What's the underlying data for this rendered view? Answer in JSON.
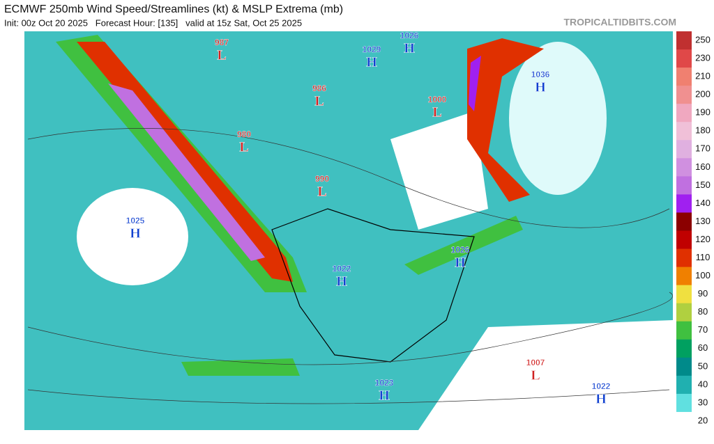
{
  "header": {
    "title": "ECMWF 250mb Wind Speed/Streamlines (kt) & MSLP Extrema (mb)",
    "subtitle": "Init: 00z Oct 20 2025   Forecast Hour: [135]   valid at 15z Sat, Oct 25 2025",
    "site": "TROPICALTIDBITS.COM"
  },
  "pressure_centers": [
    {
      "value": 987,
      "kind": "L"
    },
    {
      "value": 986,
      "kind": "L"
    },
    {
      "value": 980,
      "kind": "L"
    },
    {
      "value": 990,
      "kind": "L"
    },
    {
      "value": 1000,
      "kind": "L"
    },
    {
      "value": 1007,
      "kind": "L"
    },
    {
      "value": 1025,
      "kind": "H"
    },
    {
      "value": 1029,
      "kind": "H"
    },
    {
      "value": 1026,
      "kind": "H"
    },
    {
      "value": 1036,
      "kind": "H"
    },
    {
      "value": 1022,
      "kind": "H"
    },
    {
      "value": 1026,
      "kind": "H"
    },
    {
      "value": 1023,
      "kind": "H"
    },
    {
      "value": 1022,
      "kind": "H"
    }
  ],
  "colorbar": {
    "labels": [
      250,
      230,
      210,
      200,
      190,
      180,
      170,
      160,
      150,
      140,
      130,
      120,
      110,
      100,
      90,
      80,
      70,
      60,
      50,
      40,
      30,
      20
    ],
    "colors": [
      "#c03030",
      "#e04848",
      "#f08070",
      "#f09090",
      "#f0a8c0",
      "#f0c0d8",
      "#e0b0e0",
      "#d090e0",
      "#c070e0",
      "#a020f0",
      "#8b0000",
      "#c00000",
      "#e03000",
      "#f08000",
      "#f0e040",
      "#b0d040",
      "#40c040",
      "#00a060",
      "#008a8a",
      "#20b0b0",
      "#60e0e0",
      "#ffffff"
    ]
  }
}
